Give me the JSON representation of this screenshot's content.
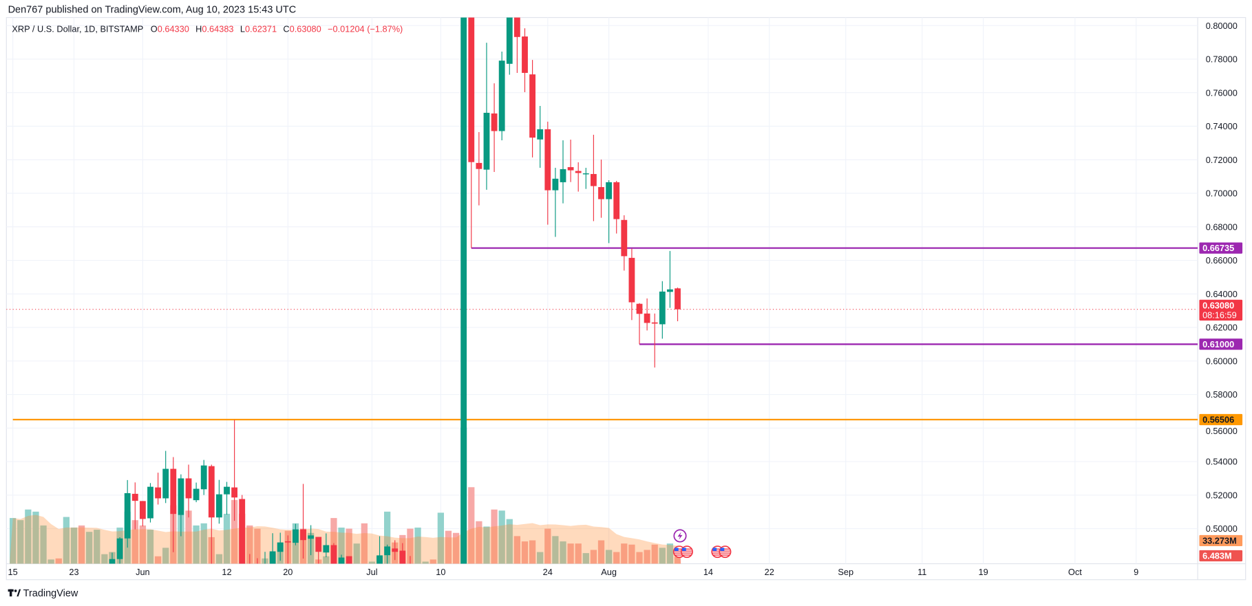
{
  "header": {
    "published": "Den767 published on TradingView.com, Aug 10, 2023 15:43 UTC"
  },
  "legend": {
    "symbol": "XRP / U.S. Dollar, 1D, BITSTAMP",
    "o_label": "O",
    "o": "0.64330",
    "h_label": "H",
    "h": "0.64383",
    "l_label": "L",
    "l": "0.62371",
    "c_label": "C",
    "c": "0.63080",
    "change": "−0.01204 (−1.87%)"
  },
  "colors": {
    "up": "#089981",
    "down": "#f23645",
    "volume_up": "#92d2cc",
    "volume_down": "#f7a9a7",
    "volume_ma": "#ff9a5c",
    "resistance": "#9c27b0",
    "support_orange": "#ff9800",
    "grid": "#f0f3fa",
    "text": "#131722"
  },
  "chart_data": {
    "type": "candlestick",
    "title": "XRP / U.S. Dollar, 1D, BITSTAMP",
    "grid": true,
    "ylim": [
      0.4791,
      0.8048
    ],
    "price_ticks": [
      "0.80000",
      "0.78000",
      "0.76000",
      "0.74000",
      "0.72000",
      "0.70000",
      "0.68000",
      "0.66000",
      "0.64000",
      "0.62000",
      "0.60000",
      "0.58000",
      "0.56000",
      "0.54000",
      "0.52000",
      "0.50000"
    ],
    "time_ticks": [
      {
        "label": "15",
        "date": "2023-05-15"
      },
      {
        "label": "23",
        "date": "2023-05-23"
      },
      {
        "label": "Jun",
        "date": "2023-06-01"
      },
      {
        "label": "12",
        "date": "2023-06-12"
      },
      {
        "label": "20",
        "date": "2023-06-20"
      },
      {
        "label": "Jul",
        "date": "2023-07-01"
      },
      {
        "label": "10",
        "date": "2023-07-10"
      },
      {
        "label": "24",
        "date": "2023-07-24"
      },
      {
        "label": "Aug",
        "date": "2023-08-01"
      },
      {
        "label": "14",
        "date": "2023-08-14"
      },
      {
        "label": "22",
        "date": "2023-08-22"
      },
      {
        "label": "Sep",
        "date": "2023-09-01"
      },
      {
        "label": "11",
        "date": "2023-09-11"
      },
      {
        "label": "19",
        "date": "2023-09-19"
      },
      {
        "label": "Oct",
        "date": "2023-10-01"
      },
      {
        "label": "9",
        "date": "2023-10-09"
      }
    ],
    "candles_fields": [
      "date",
      "open",
      "high",
      "low",
      "close"
    ],
    "candles": [
      [
        "2023-05-28",
        0.476,
        0.4857,
        0.472,
        0.4819
      ],
      [
        "2023-05-29",
        0.4819,
        0.4949,
        0.477,
        0.4942
      ],
      [
        "2023-05-30",
        0.4942,
        0.529,
        0.4887,
        0.5212
      ],
      [
        "2023-05-31",
        0.5208,
        0.5276,
        0.4996,
        0.5166
      ],
      [
        "2023-06-01",
        0.5165,
        0.5165,
        0.5014,
        0.5058
      ],
      [
        "2023-06-02",
        0.5062,
        0.5272,
        0.5037,
        0.525
      ],
      [
        "2023-06-03",
        0.5246,
        0.5334,
        0.5144,
        0.5181
      ],
      [
        "2023-06-04",
        0.5181,
        0.5464,
        0.5153,
        0.5357
      ],
      [
        "2023-06-05",
        0.5357,
        0.5427,
        0.486,
        0.5088
      ],
      [
        "2023-06-06",
        0.5082,
        0.5324,
        0.4955,
        0.53
      ],
      [
        "2023-06-07",
        0.53,
        0.5382,
        0.5067,
        0.5181
      ],
      [
        "2023-06-08",
        0.517,
        0.5275,
        0.5158,
        0.5238
      ],
      [
        "2023-06-09",
        0.5235,
        0.541,
        0.5201,
        0.5377
      ],
      [
        "2023-06-10",
        0.5373,
        0.5382,
        0.478,
        0.5067
      ],
      [
        "2023-06-11",
        0.5067,
        0.5291,
        0.503,
        0.5205
      ],
      [
        "2023-06-12",
        0.5205,
        0.5279,
        0.5084,
        0.525
      ],
      [
        "2023-06-13",
        0.5246,
        0.5649,
        0.5047,
        0.5186
      ],
      [
        "2023-06-14",
        0.5177,
        0.5201,
        0.47,
        0.476
      ],
      [
        "2023-06-15",
        0.476,
        0.4849,
        0.47,
        0.473
      ],
      [
        "2023-06-16",
        0.473,
        0.4824,
        0.468,
        0.471
      ],
      [
        "2023-06-17",
        0.471,
        0.4862,
        0.469,
        0.479
      ],
      [
        "2023-06-18",
        0.479,
        0.4973,
        0.476,
        0.4865
      ],
      [
        "2023-06-19",
        0.4862,
        0.4976,
        0.4809,
        0.4918
      ],
      [
        "2023-06-20",
        0.4925,
        0.496,
        0.479,
        0.4918
      ],
      [
        "2023-06-21",
        0.4916,
        0.5029,
        0.4901,
        0.4996
      ],
      [
        "2023-06-22",
        0.4996,
        0.5267,
        0.4822,
        0.4932
      ],
      [
        "2023-06-23",
        0.494,
        0.5021,
        0.4842,
        0.496
      ],
      [
        "2023-06-24",
        0.4951,
        0.4951,
        0.479,
        0.4862
      ],
      [
        "2023-06-25",
        0.4858,
        0.4972,
        0.483,
        0.4902
      ],
      [
        "2023-06-26",
        0.4902,
        0.4914,
        0.476,
        0.478
      ],
      [
        "2023-06-27",
        0.478,
        0.4845,
        0.476,
        0.4828
      ],
      [
        "2023-06-28",
        0.4836,
        0.4836,
        0.474,
        0.477
      ],
      [
        "2023-07-02",
        0.478,
        0.4955,
        0.475,
        0.4841
      ],
      [
        "2023-07-03",
        0.4842,
        0.4905,
        0.479,
        0.4894
      ],
      [
        "2023-07-04",
        0.4882,
        0.4931,
        0.4813,
        0.4862
      ],
      [
        "2023-07-05",
        0.4869,
        0.4914,
        0.476,
        0.479
      ],
      [
        "2023-07-06",
        0.479,
        0.4837,
        0.474,
        0.476
      ],
      [
        "2023-07-13",
        0.4733,
        0.83,
        0.464,
        0.815
      ],
      [
        "2023-07-14",
        0.815,
        0.82,
        0.6674,
        0.7186
      ],
      [
        "2023-07-15",
        0.7181,
        0.7365,
        0.6928,
        0.7145
      ],
      [
        "2023-07-16",
        0.7141,
        0.7898,
        0.7021,
        0.748
      ],
      [
        "2023-07-17",
        0.7476,
        0.7656,
        0.7127,
        0.7371
      ],
      [
        "2023-07-18",
        0.7371,
        0.7845,
        0.7316,
        0.7791
      ],
      [
        "2023-07-19",
        0.7772,
        0.82,
        0.7707,
        0.81
      ],
      [
        "2023-07-20",
        0.81,
        0.815,
        0.7718,
        0.7932
      ],
      [
        "2023-07-21",
        0.7935,
        0.7984,
        0.7603,
        0.7718
      ],
      [
        "2023-07-22",
        0.7709,
        0.7795,
        0.7214,
        0.7332
      ],
      [
        "2023-07-23",
        0.7321,
        0.7521,
        0.7152,
        0.7382
      ],
      [
        "2023-07-24",
        0.7382,
        0.7427,
        0.6813,
        0.7018
      ],
      [
        "2023-07-25",
        0.7018,
        0.7152,
        0.674,
        0.7087
      ],
      [
        "2023-07-26",
        0.7066,
        0.7316,
        0.694,
        0.7144
      ],
      [
        "2023-07-27",
        0.7156,
        0.732,
        0.7067,
        0.7137
      ],
      [
        "2023-07-28",
        0.7133,
        0.7185,
        0.701,
        0.7121
      ],
      [
        "2023-07-29",
        0.7113,
        0.7152,
        0.7026,
        0.7119
      ],
      [
        "2023-07-30",
        0.7115,
        0.7349,
        0.6834,
        0.7043
      ],
      [
        "2023-07-31",
        0.7037,
        0.7201,
        0.6854,
        0.6965
      ],
      [
        "2023-08-01",
        0.6965,
        0.7078,
        0.6703,
        0.7066
      ],
      [
        "2023-08-02",
        0.7066,
        0.7074,
        0.676,
        0.6846
      ],
      [
        "2023-08-03",
        0.6841,
        0.6869,
        0.6539,
        0.6625
      ],
      [
        "2023-08-04",
        0.6615,
        0.667,
        0.6244,
        0.635
      ],
      [
        "2023-08-05",
        0.6341,
        0.6345,
        0.61,
        0.6281
      ],
      [
        "2023-08-06",
        0.6283,
        0.6373,
        0.6182,
        0.6227
      ],
      [
        "2023-08-07",
        0.623,
        0.6283,
        0.5961,
        0.6223
      ],
      [
        "2023-08-08",
        0.6219,
        0.6476,
        0.6133,
        0.6414
      ],
      [
        "2023-08-09",
        0.6412,
        0.6656,
        0.6317,
        0.6427
      ],
      [
        "2023-08-10",
        0.6433,
        0.6438,
        0.6237,
        0.6308
      ]
    ],
    "volume_unit": "M",
    "volume_fields": [
      "date",
      "volume",
      "direction"
    ],
    "volume": [
      [
        "2023-05-15",
        43,
        "up"
      ],
      [
        "2023-05-16",
        41,
        "up"
      ],
      [
        "2023-05-17",
        51,
        "up"
      ],
      [
        "2023-05-18",
        49,
        "up"
      ],
      [
        "2023-05-19",
        36,
        "up"
      ],
      [
        "2023-05-20",
        4,
        "up"
      ],
      [
        "2023-05-21",
        5,
        "down"
      ],
      [
        "2023-05-22",
        44,
        "up"
      ],
      [
        "2023-05-23",
        34,
        "up"
      ],
      [
        "2023-05-24",
        36,
        "down"
      ],
      [
        "2023-05-25",
        30,
        "up"
      ],
      [
        "2023-05-26",
        32,
        "up"
      ],
      [
        "2023-05-27",
        9,
        "up"
      ],
      [
        "2023-05-28",
        11,
        "up"
      ],
      [
        "2023-05-29",
        34,
        "up"
      ],
      [
        "2023-05-30",
        49,
        "up"
      ],
      [
        "2023-05-31",
        41,
        "down"
      ],
      [
        "2023-06-01",
        36,
        "down"
      ],
      [
        "2023-06-02",
        32,
        "up"
      ],
      [
        "2023-06-03",
        7,
        "down"
      ],
      [
        "2023-06-04",
        15,
        "up"
      ],
      [
        "2023-06-05",
        55,
        "down"
      ],
      [
        "2023-06-06",
        46,
        "up"
      ],
      [
        "2023-06-07",
        50,
        "down"
      ],
      [
        "2023-06-08",
        36,
        "up"
      ],
      [
        "2023-06-09",
        38,
        "up"
      ],
      [
        "2023-06-10",
        25,
        "down"
      ],
      [
        "2023-06-11",
        9,
        "up"
      ],
      [
        "2023-06-12",
        47,
        "up"
      ],
      [
        "2023-06-13",
        60,
        "down"
      ],
      [
        "2023-06-14",
        47,
        "down"
      ],
      [
        "2023-06-15",
        36,
        "down"
      ],
      [
        "2023-06-16",
        33,
        "down"
      ],
      [
        "2023-06-17",
        5,
        "up"
      ],
      [
        "2023-06-18",
        10,
        "up"
      ],
      [
        "2023-06-19",
        20,
        "up"
      ],
      [
        "2023-06-20",
        31,
        "down"
      ],
      [
        "2023-06-21",
        38,
        "up"
      ],
      [
        "2023-06-22",
        33,
        "down"
      ],
      [
        "2023-06-23",
        29,
        "up"
      ],
      [
        "2023-06-24",
        4,
        "down"
      ],
      [
        "2023-06-25",
        7,
        "up"
      ],
      [
        "2023-06-26",
        43,
        "down"
      ],
      [
        "2023-06-27",
        34,
        "up"
      ],
      [
        "2023-06-28",
        33,
        "down"
      ],
      [
        "2023-06-29",
        19,
        "up"
      ],
      [
        "2023-06-30",
        38,
        "down"
      ],
      [
        "2023-07-01",
        2,
        "up"
      ],
      [
        "2023-07-02",
        7,
        "up"
      ],
      [
        "2023-07-03",
        49,
        "up"
      ],
      [
        "2023-07-04",
        20,
        "down"
      ],
      [
        "2023-07-05",
        27,
        "down"
      ],
      [
        "2023-07-06",
        33,
        "down"
      ],
      [
        "2023-07-07",
        34,
        "up"
      ],
      [
        "2023-07-08",
        2,
        "up"
      ],
      [
        "2023-07-09",
        4,
        "down"
      ],
      [
        "2023-07-10",
        48,
        "up"
      ],
      [
        "2023-07-11",
        31,
        "down"
      ],
      [
        "2023-07-12",
        29,
        "down"
      ],
      [
        "2023-07-13",
        128,
        "up"
      ],
      [
        "2023-07-14",
        72,
        "down"
      ],
      [
        "2023-07-15",
        40,
        "down"
      ],
      [
        "2023-07-16",
        35,
        "up"
      ],
      [
        "2023-07-17",
        51,
        "down"
      ],
      [
        "2023-07-18",
        50,
        "up"
      ],
      [
        "2023-07-19",
        42,
        "up"
      ],
      [
        "2023-07-20",
        26,
        "down"
      ],
      [
        "2023-07-21",
        21,
        "down"
      ],
      [
        "2023-07-22",
        22,
        "down"
      ],
      [
        "2023-07-23",
        11,
        "up"
      ],
      [
        "2023-07-24",
        33,
        "down"
      ],
      [
        "2023-07-25",
        26,
        "up"
      ],
      [
        "2023-07-26",
        21,
        "up"
      ],
      [
        "2023-07-27",
        19,
        "down"
      ],
      [
        "2023-07-28",
        19,
        "down"
      ],
      [
        "2023-07-29",
        10,
        "up"
      ],
      [
        "2023-07-30",
        13,
        "down"
      ],
      [
        "2023-07-31",
        22,
        "down"
      ],
      [
        "2023-08-01",
        13,
        "up"
      ],
      [
        "2023-08-02",
        11,
        "down"
      ],
      [
        "2023-08-03",
        19,
        "down"
      ],
      [
        "2023-08-04",
        18,
        "down"
      ],
      [
        "2023-08-05",
        11,
        "down"
      ],
      [
        "2023-08-06",
        13,
        "down"
      ],
      [
        "2023-08-07",
        18,
        "down"
      ],
      [
        "2023-08-08",
        15,
        "up"
      ],
      [
        "2023-08-09",
        19,
        "up"
      ],
      [
        "2023-08-10",
        6.483,
        "down"
      ]
    ],
    "horizontal_lines": [
      {
        "price": 0.66735,
        "label": "0.66735",
        "color": "#9c27b0",
        "from": "2023-07-14"
      },
      {
        "price": 0.61,
        "label": "0.61000",
        "color": "#9c27b0",
        "from": "2023-08-05"
      },
      {
        "price": 0.56506,
        "label": "0.56506",
        "color": "#ff9800",
        "from": "2023-05-15"
      }
    ],
    "last_price": {
      "price": 0.6308,
      "label": "0.63080",
      "countdown": "08:16:59",
      "color": "#f23645"
    },
    "volume_labels": {
      "ma": "33.273M",
      "ma_color": "#ff9a5c",
      "last": "6.483M",
      "last_color": "#ef5350"
    },
    "events": [
      {
        "date": "2023-08-10",
        "icon": "lightning-icon",
        "row": "top"
      },
      {
        "date": "2023-08-10",
        "icon": "us-flag-icon",
        "row": "bottom"
      },
      {
        "date": "2023-08-11",
        "icon": "us-flag-icon",
        "row": "bottom"
      },
      {
        "date": "2023-08-15",
        "icon": "us-flag-icon",
        "row": "bottom"
      },
      {
        "date": "2023-08-16",
        "icon": "us-flag-icon",
        "row": "bottom"
      }
    ]
  },
  "footer": {
    "logo": "TradingView"
  }
}
